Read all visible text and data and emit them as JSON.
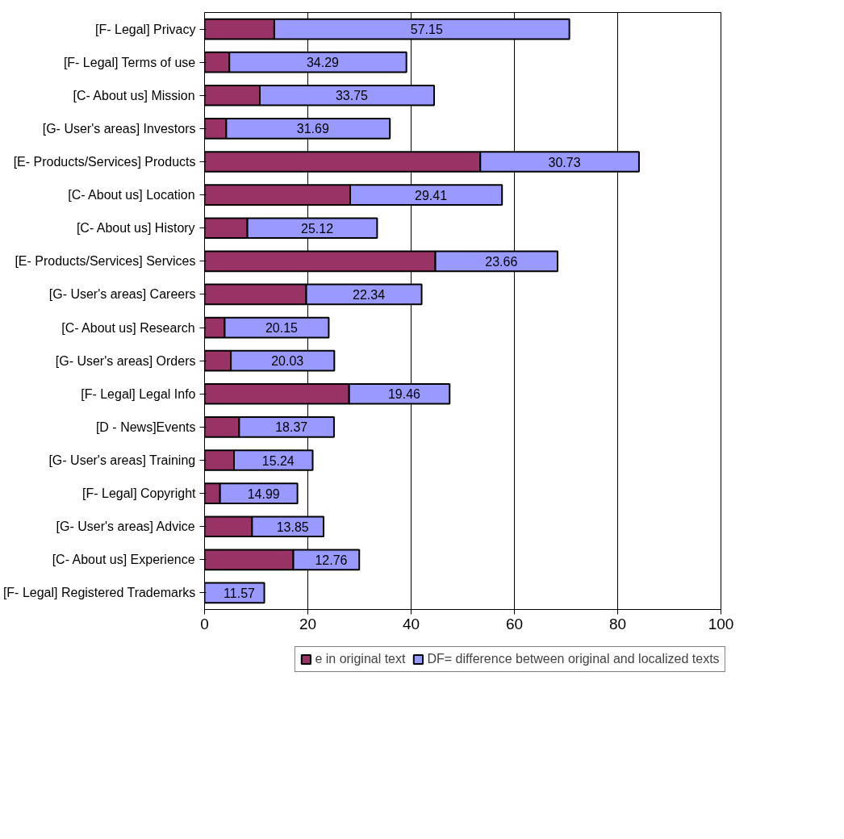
{
  "chart_data": {
    "type": "bar",
    "orientation": "horizontal",
    "stacked": true,
    "categories": [
      "[F- Legal] Privacy",
      "[F- Legal] Terms of use",
      "[C- About us] Mission",
      "[G- User's areas] Investors",
      "[E- Products/Services] Products",
      "[C- About us] Location",
      "[C- About us] History",
      "[E- Products/Services] Services",
      "[G- User's areas] Careers",
      "[C- About us] Research",
      "[G- User's areas] Orders",
      "[F- Legal] Legal Info",
      "[D - News]Events",
      "[G- User's areas] Training",
      "[F- Legal] Copyright",
      "[G- User's areas] Advice",
      "[C- About us] Experience",
      "[F- Legal] Registered Trademarks"
    ],
    "series": [
      {
        "name": "e in original text",
        "color": "#993366",
        "values": [
          13.5,
          4.8,
          10.7,
          4.2,
          53.4,
          28.2,
          8.3,
          44.7,
          19.7,
          3.9,
          5.1,
          28.0,
          6.7,
          5.7,
          3.0,
          9.2,
          17.2,
          0
        ]
      },
      {
        "name": "DF= difference between original and localized texts",
        "color": "#9999ff",
        "values": [
          57.15,
          34.29,
          33.75,
          31.69,
          30.73,
          29.41,
          25.12,
          23.66,
          22.34,
          20.15,
          20.03,
          19.46,
          18.37,
          15.24,
          14.99,
          13.85,
          12.76,
          11.57
        ],
        "value_labels": [
          "57.15",
          "34.29",
          "33.75",
          "31.69",
          "30.73",
          "29.41",
          "25.12",
          "23.66",
          "22.34",
          "20.15",
          "20.03",
          "19.46",
          "18.37",
          "15.24",
          "14.99",
          "13.85",
          "12.76",
          "11.57"
        ]
      }
    ],
    "xlim": [
      0,
      100
    ],
    "xticks": [
      0,
      20,
      40,
      60,
      80,
      100
    ],
    "grid": "x",
    "legend": "bottom"
  }
}
